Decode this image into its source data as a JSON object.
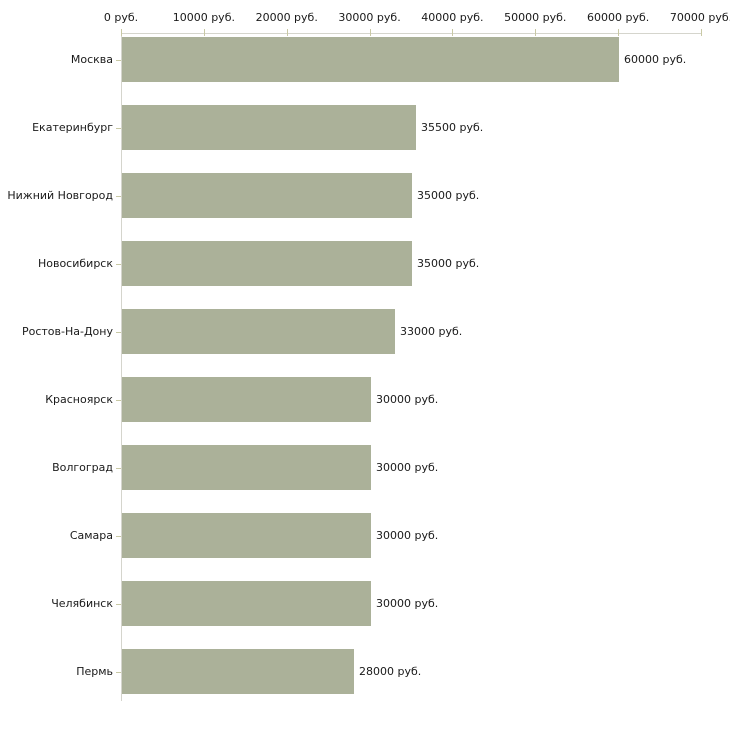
{
  "chart_data": {
    "type": "bar",
    "orientation": "horizontal",
    "title": "",
    "xlabel": "",
    "ylabel": "",
    "unit_suffix": "руб.",
    "xlim": [
      0,
      70000
    ],
    "grid": false,
    "legend": false,
    "x_ticks": [
      {
        "value": 0,
        "label": "0 руб."
      },
      {
        "value": 10000,
        "label": "10000 руб."
      },
      {
        "value": 20000,
        "label": "20000 руб."
      },
      {
        "value": 30000,
        "label": "30000 руб."
      },
      {
        "value": 40000,
        "label": "40000 руб."
      },
      {
        "value": 50000,
        "label": "50000 руб."
      },
      {
        "value": 60000,
        "label": "60000 руб."
      },
      {
        "value": 70000,
        "label": "70000 руб."
      }
    ],
    "categories": [
      "Москва",
      "Екатеринбург",
      "Нижний Новгород",
      "Новосибирск",
      "Ростов-На-Дону",
      "Красноярск",
      "Волгоград",
      "Самара",
      "Челябинск",
      "Пермь"
    ],
    "values": [
      60000,
      35500,
      35000,
      35000,
      33000,
      30000,
      30000,
      30000,
      30000,
      28000
    ],
    "value_labels": [
      "60000 руб.",
      "35500 руб.",
      "35000 руб.",
      "35000 руб.",
      "33000 руб.",
      "30000 руб.",
      "30000 руб.",
      "30000 руб.",
      "30000 руб.",
      "28000 руб."
    ],
    "colors": {
      "bar": "#abb199",
      "axis": "#d5d5cd",
      "tick": "#c9c9a5",
      "text": "#1a1a1a",
      "background": "#ffffff"
    }
  }
}
